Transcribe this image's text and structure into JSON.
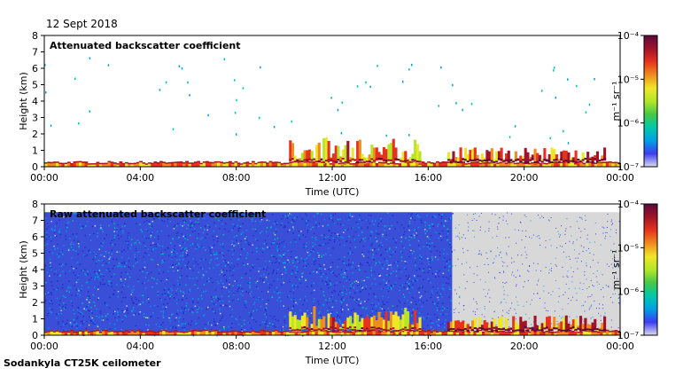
{
  "header": {
    "date": "12 Sept 2018"
  },
  "footer": {
    "instrument": "Sodankyla CT25K ceilometer"
  },
  "colors": {
    "scale": [
      "#dcdcf0",
      "#3c3cf0",
      "#00a0e6",
      "#00c8aa",
      "#46c846",
      "#b4e628",
      "#f0e628",
      "#f08c1e",
      "#e6321e",
      "#a01428",
      "#5a0a3c"
    ],
    "background_raw": "#d8d8d8"
  },
  "chart_data": [
    {
      "type": "heatmap",
      "title": "Attenuated backscatter coefficient",
      "xlabel": "Time (UTC)",
      "ylabel": "Height (km)",
      "xlim": [
        0,
        24
      ],
      "ylim": [
        0,
        8
      ],
      "xticks": [
        "00:00",
        "04:00",
        "08:00",
        "12:00",
        "16:00",
        "20:00",
        "00:00"
      ],
      "yticks": [
        "0",
        "1",
        "2",
        "3",
        "4",
        "5",
        "6",
        "7",
        "8"
      ],
      "colorbar": {
        "label": "m⁻¹ sr⁻¹",
        "scale": "log",
        "range": [
          1e-07,
          0.0001
        ],
        "ticks": [
          "10⁻⁷",
          "10⁻⁶",
          "10⁻⁵",
          "10⁻⁴"
        ]
      },
      "layers": [
        {
          "feature": "boundary-layer",
          "start_hour": 0,
          "end_hour": 24,
          "height_km": 0.2,
          "level": 0.55
        },
        {
          "feature": "cloud",
          "start_hour": 10.2,
          "end_hour": 15.6,
          "base_km": 0.4,
          "top_km": 1.8,
          "level": 0.72
        },
        {
          "feature": "cloud",
          "start_hour": 16.8,
          "end_hour": 23.4,
          "base_km": 0.4,
          "top_km": 1.2,
          "level": 0.8
        }
      ]
    },
    {
      "type": "heatmap",
      "title": "Raw attenuated backscatter coefficient",
      "xlabel": "Time (UTC)",
      "ylabel": "Height (km)",
      "xlim": [
        0,
        24
      ],
      "ylim": [
        0,
        8
      ],
      "xticks": [
        "00:00",
        "04:00",
        "08:00",
        "12:00",
        "16:00",
        "20:00",
        "00:00"
      ],
      "yticks": [
        "0",
        "1",
        "2",
        "3",
        "4",
        "5",
        "6",
        "7",
        "8"
      ],
      "colorbar": {
        "label": "m⁻¹ sr⁻¹",
        "scale": "log",
        "range": [
          1e-07,
          0.0001
        ],
        "ticks": [
          "10⁻⁷",
          "10⁻⁶",
          "10⁻⁵",
          "10⁻⁴"
        ]
      },
      "noise_region": {
        "start_hour": 0,
        "end_hour": 17.0,
        "top_km": 7.5
      },
      "layers": [
        {
          "feature": "boundary-layer",
          "start_hour": 0,
          "end_hour": 24,
          "height_km": 0.2,
          "level": 0.55
        },
        {
          "feature": "cloud",
          "start_hour": 10.2,
          "end_hour": 15.6,
          "base_km": 0.4,
          "top_km": 1.8,
          "level": 0.72
        },
        {
          "feature": "cloud",
          "start_hour": 16.8,
          "end_hour": 23.4,
          "base_km": 0.4,
          "top_km": 1.2,
          "level": 0.8
        }
      ]
    }
  ]
}
